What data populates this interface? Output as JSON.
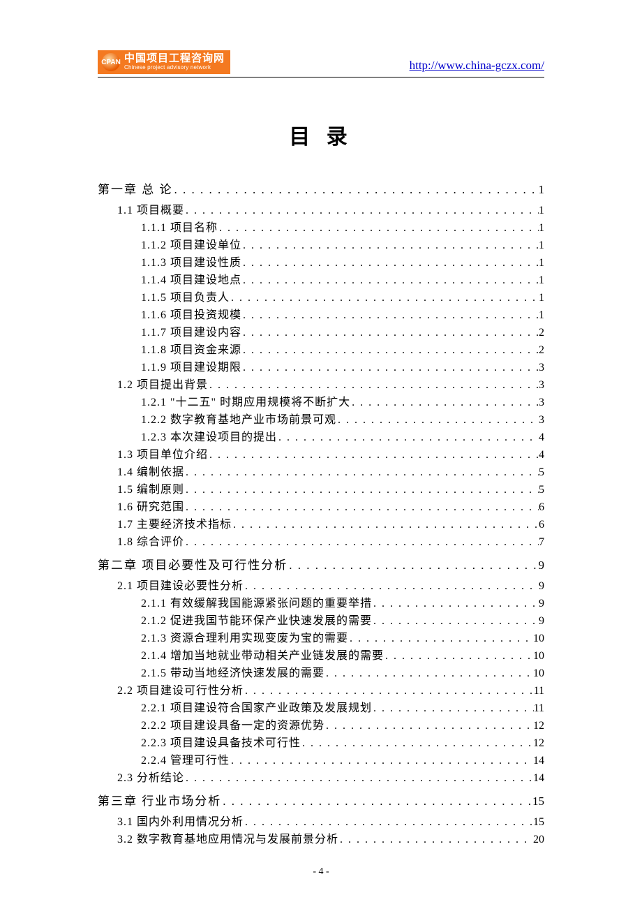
{
  "header": {
    "logo_cn": "中国项目工程咨询网",
    "logo_en": "Chinese project advisory network",
    "logo_badge": "CPAN",
    "url": "http://www.china-gczx.com/"
  },
  "title": "目 录",
  "footer": "- 4 -",
  "colors": {
    "logo_bg": "#f47920",
    "link": "#0000cc",
    "text": "#000000"
  },
  "toc": [
    {
      "level": 1,
      "label": "第一章  总 论",
      "page": "1"
    },
    {
      "level": 2,
      "label": "1.1 项目概要",
      "page": "1"
    },
    {
      "level": 3,
      "label": "1.1.1 项目名称",
      "page": "1"
    },
    {
      "level": 3,
      "label": "1.1.2 项目建设单位",
      "page": "1"
    },
    {
      "level": 3,
      "label": "1.1.3 项目建设性质",
      "page": "1"
    },
    {
      "level": 3,
      "label": "1.1.4 项目建设地点",
      "page": "1"
    },
    {
      "level": 3,
      "label": "1.1.5 项目负责人",
      "page": "1"
    },
    {
      "level": 3,
      "label": "1.1.6 项目投资规模",
      "page": "1"
    },
    {
      "level": 3,
      "label": "1.1.7 项目建设内容",
      "page": "2"
    },
    {
      "level": 3,
      "label": "1.1.8 项目资金来源",
      "page": "2"
    },
    {
      "level": 3,
      "label": "1.1.9 项目建设期限",
      "page": "3"
    },
    {
      "level": 2,
      "label": "1.2 项目提出背景",
      "page": "3"
    },
    {
      "level": 3,
      "label": "1.2.1 \"十二五\" 时期应用规模将不断扩大",
      "page": "3"
    },
    {
      "level": 3,
      "label": "1.2.2 数字教育基地产业市场前景可观",
      "page": "3"
    },
    {
      "level": 3,
      "label": "1.2.3 本次建设项目的提出",
      "page": "4"
    },
    {
      "level": 2,
      "label": "1.3 项目单位介绍",
      "page": "4"
    },
    {
      "level": 2,
      "label": "1.4 编制依据",
      "page": "5"
    },
    {
      "level": 2,
      "label": "1.5 编制原则",
      "page": "5"
    },
    {
      "level": 2,
      "label": "1.6 研究范围",
      "page": "6"
    },
    {
      "level": 2,
      "label": "1.7 主要经济技术指标",
      "page": "6"
    },
    {
      "level": 2,
      "label": "1.8 综合评价",
      "page": "7"
    },
    {
      "level": 1,
      "label": "第二章  项目必要性及可行性分析",
      "page": "9"
    },
    {
      "level": 2,
      "label": "2.1 项目建设必要性分析",
      "page": "9"
    },
    {
      "level": 3,
      "label": "2.1.1 有效缓解我国能源紧张问题的重要举措",
      "page": "9"
    },
    {
      "level": 3,
      "label": "2.1.2 促进我国节能环保产业快速发展的需要",
      "page": "9"
    },
    {
      "level": 3,
      "label": "2.1.3 资源合理利用实现变废为宝的需要",
      "page": "10"
    },
    {
      "level": 3,
      "label": "2.1.4 增加当地就业带动相关产业链发展的需要",
      "page": "10"
    },
    {
      "level": 3,
      "label": "2.1.5 带动当地经济快速发展的需要",
      "page": "10"
    },
    {
      "level": 2,
      "label": "2.2 项目建设可行性分析",
      "page": "11"
    },
    {
      "level": 3,
      "label": "2.2.1 项目建设符合国家产业政策及发展规划",
      "page": "11"
    },
    {
      "level": 3,
      "label": "2.2.2 项目建设具备一定的资源优势",
      "page": "12"
    },
    {
      "level": 3,
      "label": "2.2.3 项目建设具备技术可行性",
      "page": "12"
    },
    {
      "level": 3,
      "label": "2.2.4 管理可行性",
      "page": "14"
    },
    {
      "level": 2,
      "label": "2.3 分析结论",
      "page": "14"
    },
    {
      "level": 1,
      "label": "第三章  行业市场分析",
      "page": "15"
    },
    {
      "level": 2,
      "label": "3.1 国内外利用情况分析",
      "page": "15"
    },
    {
      "level": 2,
      "label": "3.2 数字教育基地应用情况与发展前景分析",
      "page": "20"
    }
  ]
}
